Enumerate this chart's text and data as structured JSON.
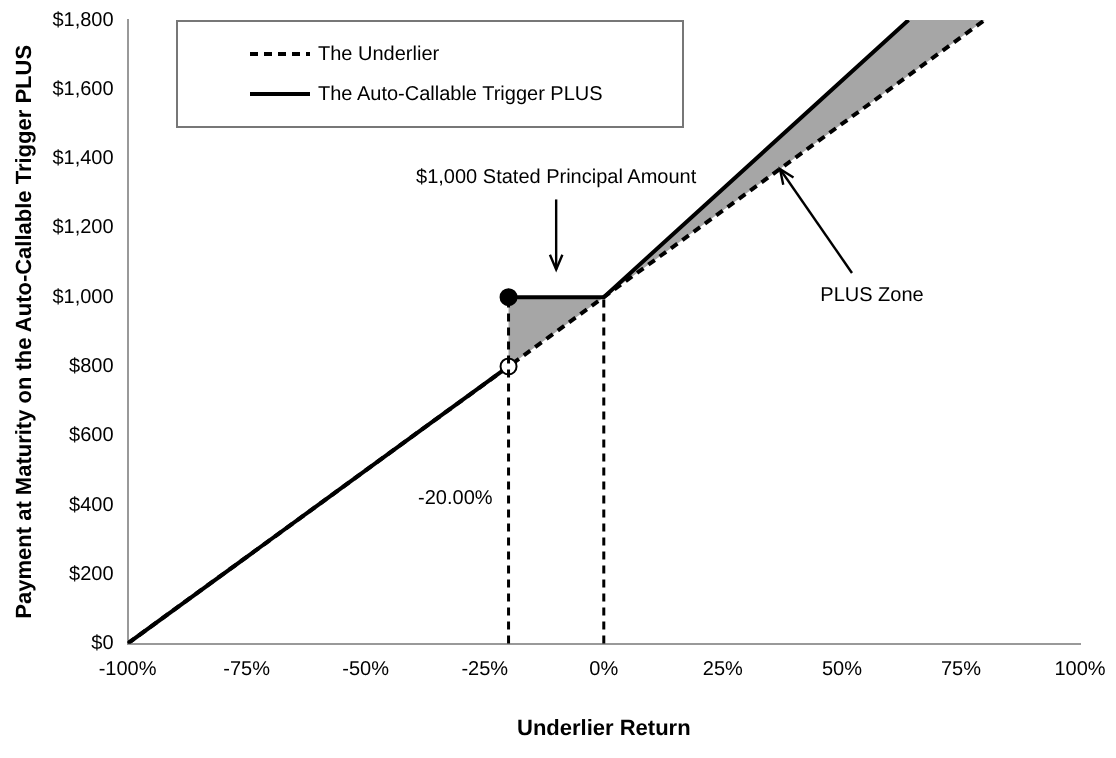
{
  "chart_data": {
    "type": "line",
    "xlabel": "Underlier Return",
    "ylabel": "Payment at Maturity on the Auto-Callable Trigger PLUS",
    "series": [
      {
        "name": "The Underlier",
        "color": "#000000",
        "line_style": "dashed",
        "x": [
          -100,
          80
        ],
        "values": [
          0,
          1800
        ]
      },
      {
        "name": "The Auto-Callable Trigger PLUS",
        "color": "#000000",
        "line_style": "solid",
        "x": [
          -100,
          -20
        ],
        "values": [
          0,
          800
        ]
      },
      {
        "color": "#000000",
        "line_style": "solid",
        "x": [
          -20,
          0,
          64,
          80
        ],
        "values": [
          1000,
          1000,
          1800,
          null
        ],
        "lower": [
          800,
          1000,
          1640,
          1800
        ],
        "upper": [
          1000,
          1000,
          1800,
          1800
        ]
      },
      {
        "type": "scatter",
        "marker": "circle",
        "x": [
          -20,
          -20
        ],
        "values": [
          1000,
          800
        ],
        "colors": [
          "#000000",
          "#ffffff"
        ]
      }
    ],
    "xlim": [
      -100,
      100
    ],
    "xticks": [
      {
        "value": -100,
        "label": "-100%"
      },
      {
        "value": -75,
        "label": "-75%"
      },
      {
        "value": -50,
        "label": "-50%"
      },
      {
        "value": -25,
        "label": "-25%"
      },
      {
        "value": 0,
        "label": "0%"
      },
      {
        "value": 25,
        "label": "25%"
      },
      {
        "value": 50,
        "label": "50%"
      },
      {
        "value": 75,
        "label": "75%"
      },
      {
        "value": 100,
        "label": "100%"
      }
    ],
    "ylim": [
      0,
      1800
    ],
    "yticks": [
      {
        "value": 0,
        "label": "$0"
      },
      {
        "value": 200,
        "label": "$200"
      },
      {
        "value": 400,
        "label": "$400"
      },
      {
        "value": 600,
        "label": "$600"
      },
      {
        "value": 800,
        "label": "$800"
      },
      {
        "value": 1000,
        "label": "$1,000"
      },
      {
        "value": 1200,
        "label": "$1,200"
      },
      {
        "value": 1400,
        "label": "$1,400"
      },
      {
        "value": 1600,
        "label": "$1,600"
      },
      {
        "value": 1800,
        "label": "$1,800"
      }
    ],
    "ref_lines": [
      {
        "axis": "x",
        "value": -20,
        "label": "-20.00%",
        "line_style": "dashed",
        "color": "#000000"
      },
      {
        "axis": "x",
        "value": 0,
        "line_style": "dashed",
        "color": "#000000"
      }
    ],
    "annotations": [
      "$1,000 Stated Principal Amount",
      {
        "text": "PLUS Zone",
        "x": 37,
        "y": 1370
      }
    ],
    "grid": false,
    "legend": "top left"
  }
}
